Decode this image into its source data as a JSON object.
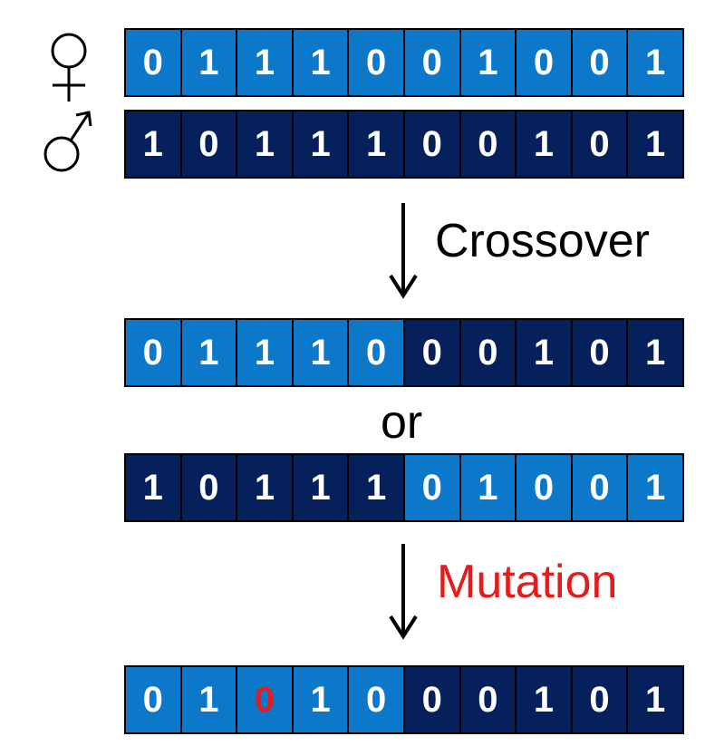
{
  "colors": {
    "light": "#0b78c9",
    "dark": "#05205a",
    "mutation": "#e11d1d",
    "text": "#ffffff"
  },
  "labels": {
    "crossover": "Crossover",
    "or": "or",
    "mutation": "Mutation"
  },
  "rows": [
    {
      "id": "female",
      "bits": [
        "0",
        "1",
        "1",
        "1",
        "0",
        "0",
        "1",
        "0",
        "0",
        "1"
      ],
      "shades": [
        "light",
        "light",
        "light",
        "light",
        "light",
        "light",
        "light",
        "light",
        "light",
        "light"
      ],
      "mutated": []
    },
    {
      "id": "male",
      "bits": [
        "1",
        "0",
        "1",
        "1",
        "1",
        "0",
        "0",
        "1",
        "0",
        "1"
      ],
      "shades": [
        "dark",
        "dark",
        "dark",
        "dark",
        "dark",
        "dark",
        "dark",
        "dark",
        "dark",
        "dark"
      ],
      "mutated": []
    },
    {
      "id": "offspring-1",
      "bits": [
        "0",
        "1",
        "1",
        "1",
        "0",
        "0",
        "0",
        "1",
        "0",
        "1"
      ],
      "shades": [
        "light",
        "light",
        "light",
        "light",
        "light",
        "dark",
        "dark",
        "dark",
        "dark",
        "dark"
      ],
      "mutated": []
    },
    {
      "id": "offspring-2",
      "bits": [
        "1",
        "0",
        "1",
        "1",
        "1",
        "0",
        "1",
        "0",
        "0",
        "1"
      ],
      "shades": [
        "dark",
        "dark",
        "dark",
        "dark",
        "dark",
        "light",
        "light",
        "light",
        "light",
        "light"
      ],
      "mutated": []
    },
    {
      "id": "mutated",
      "bits": [
        "0",
        "1",
        "0",
        "1",
        "0",
        "0",
        "0",
        "1",
        "0",
        "1"
      ],
      "shades": [
        "light",
        "light",
        "light",
        "light",
        "light",
        "dark",
        "dark",
        "dark",
        "dark",
        "dark"
      ],
      "mutated": [
        2
      ]
    }
  ],
  "icons": {
    "female": "female-symbol-icon",
    "male": "male-symbol-icon",
    "arrow": "down-arrow-icon"
  }
}
